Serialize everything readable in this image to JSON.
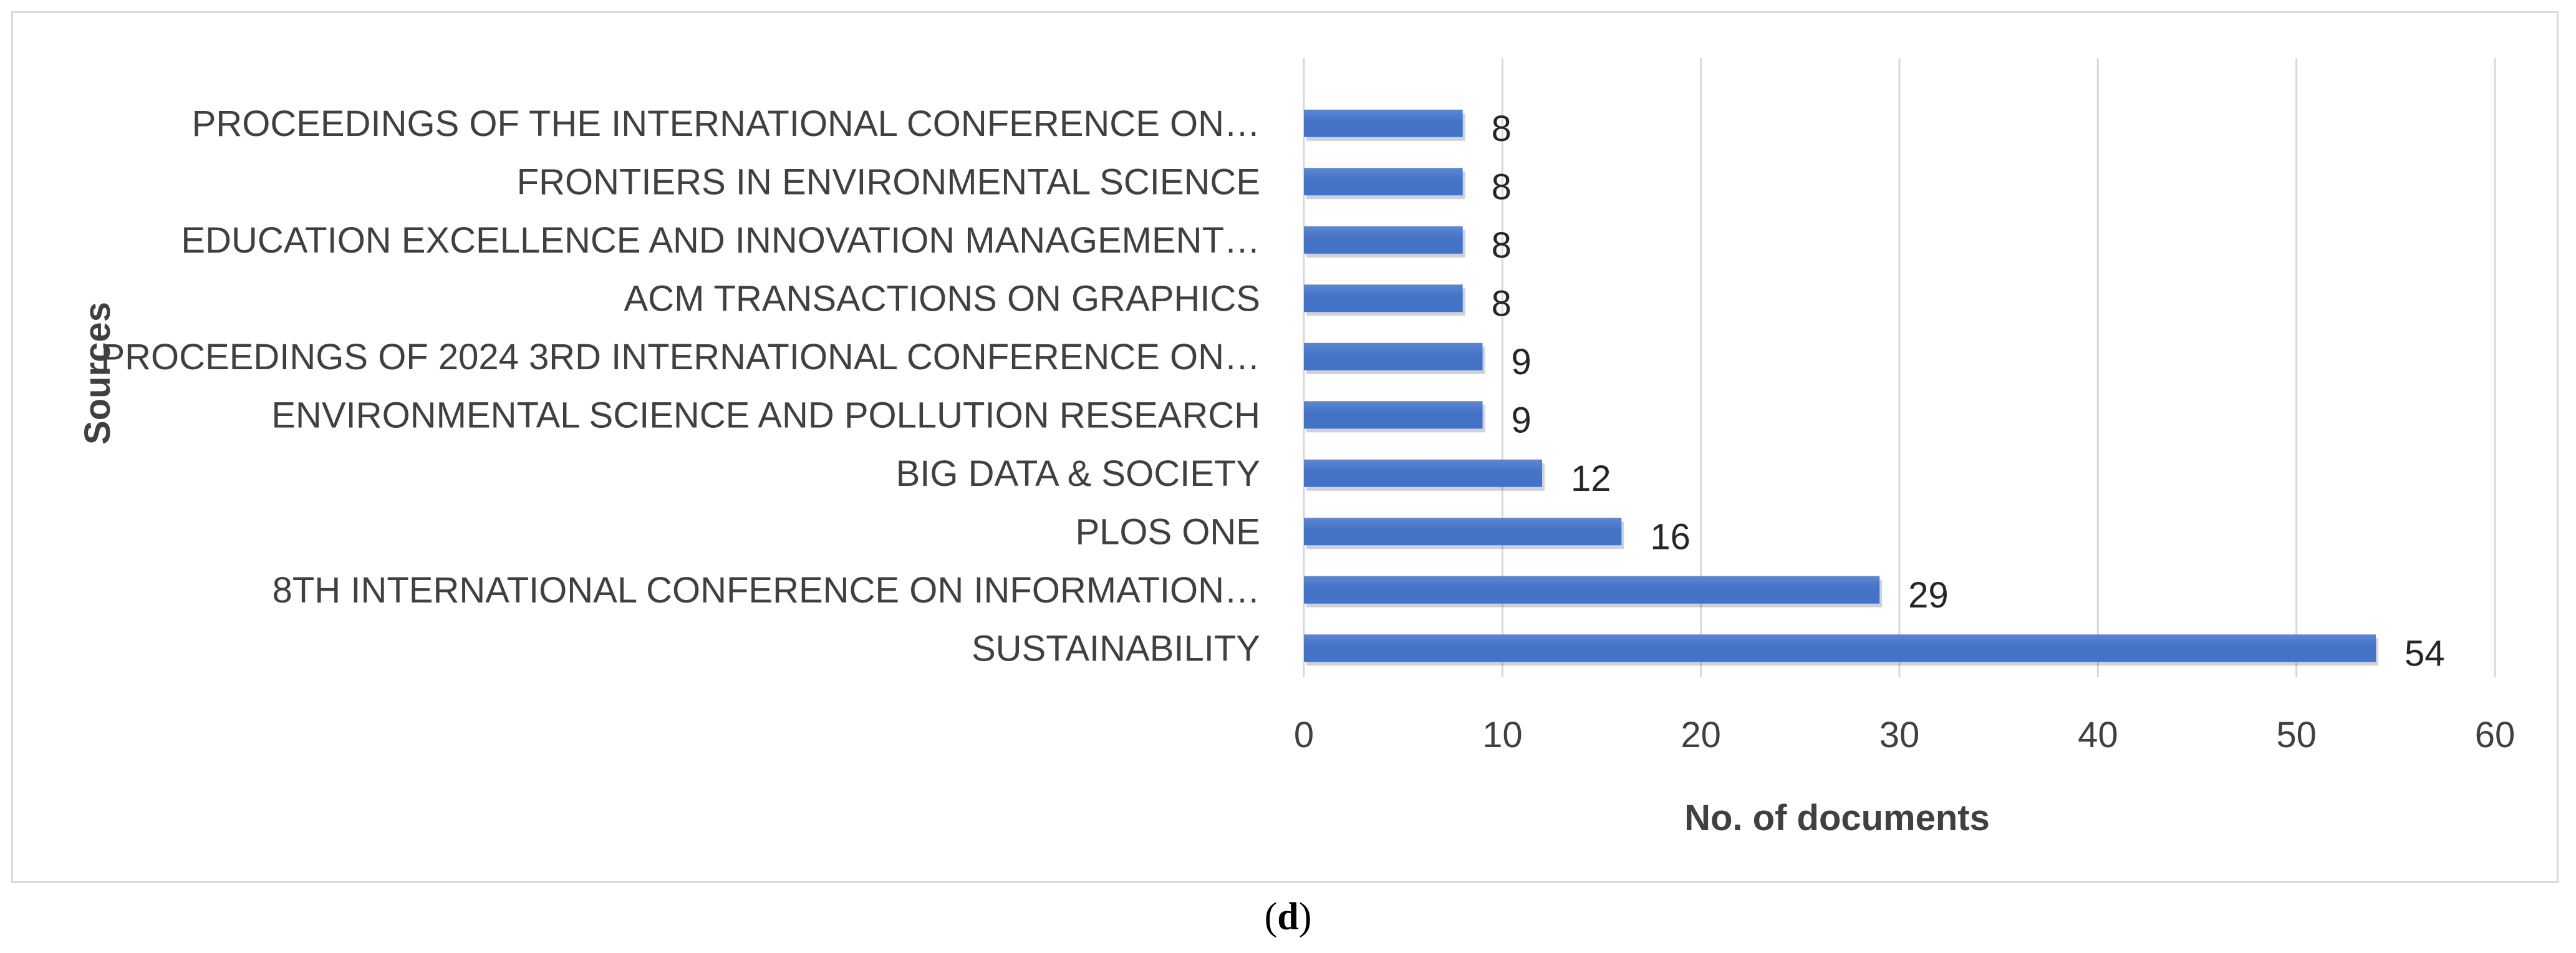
{
  "chart_data": {
    "type": "bar",
    "orientation": "horizontal",
    "categories": [
      "SUSTAINABILITY",
      "8TH INTERNATIONAL CONFERENCE ON INFORMATION…",
      "PLOS ONE",
      "BIG DATA & SOCIETY",
      "ENVIRONMENTAL SCIENCE AND POLLUTION RESEARCH",
      "PROCEEDINGS OF 2024 3RD INTERNATIONAL CONFERENCE ON…",
      "ACM TRANSACTIONS ON GRAPHICS",
      "EDUCATION EXCELLENCE AND INNOVATION MANAGEMENT…",
      "FRONTIERS IN ENVIRONMENTAL SCIENCE",
      "PROCEEDINGS OF THE INTERNATIONAL CONFERENCE ON…"
    ],
    "values": [
      54,
      29,
      16,
      12,
      9,
      9,
      8,
      8,
      8,
      8
    ],
    "xlabel": "No. of documents",
    "ylabel": "Sources",
    "xlim": [
      0,
      60
    ],
    "xticks": [
      0,
      10,
      20,
      30,
      40,
      50,
      60
    ],
    "grid": true,
    "colors": {
      "bar": "#4472c4",
      "bar_top": "#5b87d6",
      "grid": "#d9d9d9",
      "text": "#404040"
    }
  },
  "caption": {
    "open": "(",
    "letter": "d",
    "close": ")"
  }
}
